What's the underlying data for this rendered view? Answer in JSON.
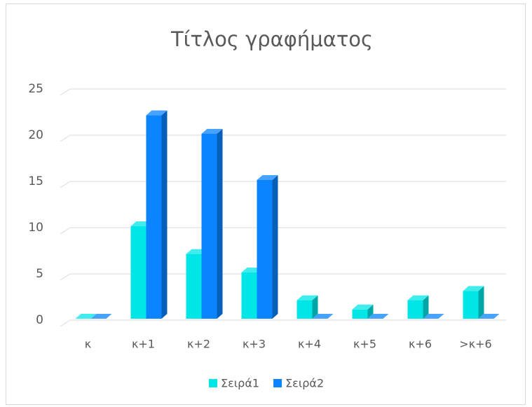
{
  "chart_data": {
    "type": "bar3d",
    "title": "Τίτλος γραφήματος",
    "categories": [
      "κ",
      "κ+1",
      "κ+2",
      "κ+3",
      "κ+4",
      "κ+5",
      "κ+6",
      ">κ+6"
    ],
    "series": [
      {
        "name": "Σειρά1",
        "color": "#00e6e6",
        "values": [
          0,
          10,
          7,
          5,
          2,
          1,
          2,
          3
        ]
      },
      {
        "name": "Σειρά2",
        "color": "#0a84ff",
        "values": [
          0,
          22,
          20,
          15,
          0,
          0,
          0,
          0
        ]
      }
    ],
    "ylim": [
      0,
      25
    ],
    "yticks": [
      0,
      5,
      10,
      15,
      20,
      25
    ],
    "grid": true,
    "legend": "bottom"
  }
}
